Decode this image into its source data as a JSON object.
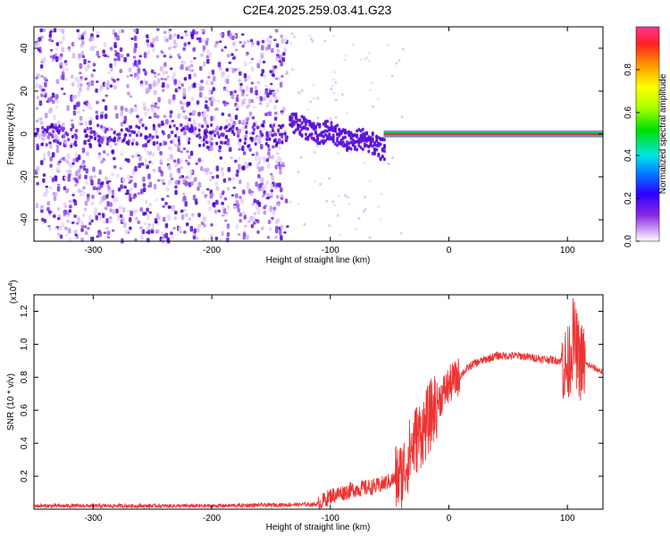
{
  "title": "C2E4.2025.259.03.41.G23",
  "chart_data": [
    {
      "type": "heatmap",
      "xlabel": "Height of straight line (km)",
      "ylabel": "Frequency (Hz)",
      "xlim": [
        -350,
        130
      ],
      "ylim": [
        -50,
        50
      ],
      "xticks": [
        -300,
        -200,
        -100,
        0,
        100
      ],
      "yticks": [
        -40,
        -20,
        0,
        20,
        40
      ],
      "colorbar": {
        "label": "Normalized spectral amplitude",
        "range": [
          0.0,
          1.0
        ],
        "ticks": [
          0.0,
          0.2,
          0.4,
          0.6,
          0.8
        ]
      },
      "features": [
        {
          "kind": "diffuse_noise",
          "x_range": [
            -350,
            -135
          ],
          "freq_range": [
            -50,
            50
          ],
          "amplitude": 0.15
        },
        {
          "kind": "wandering_line",
          "x_range": [
            -135,
            -55
          ],
          "freq_range": [
            -10,
            5
          ],
          "amplitude": 0.45
        },
        {
          "kind": "steady_carrier",
          "x_range": [
            -55,
            130
          ],
          "frequency": 0,
          "amplitude": 0.95
        }
      ]
    },
    {
      "type": "line",
      "xlabel": "Height of straight line (km)",
      "ylabel": "SNR (10 * v/v)",
      "multiplier": "(x10",
      "multiplier_exp": "4",
      "xlim": [
        -350,
        130
      ],
      "ylim": [
        0,
        1.3
      ],
      "xticks": [
        -300,
        -200,
        -100,
        0,
        100
      ],
      "yticks": [
        0.2,
        0.4,
        0.6,
        0.8,
        1.0,
        1.2
      ],
      "color": "#ee3333",
      "series": [
        {
          "name": "SNR",
          "x": [
            -350,
            -200,
            -110,
            -100,
            -80,
            -60,
            -40,
            -30,
            -20,
            -10,
            0,
            20,
            40,
            60,
            80,
            95,
            100,
            105,
            110,
            130
          ],
          "y": [
            0.02,
            0.02,
            0.03,
            0.08,
            0.12,
            0.14,
            0.2,
            0.4,
            0.5,
            0.65,
            0.75,
            0.88,
            0.93,
            0.93,
            0.91,
            0.9,
            0.85,
            1.05,
            0.9,
            0.83
          ]
        }
      ]
    }
  ]
}
